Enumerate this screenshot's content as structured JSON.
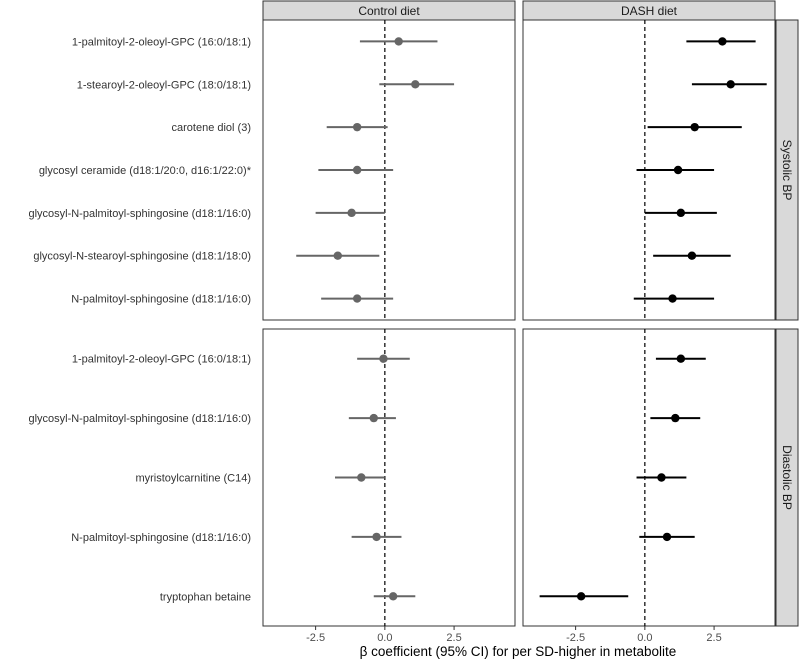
{
  "chart_data": {
    "type": "forest",
    "xlabel": "β coefficient (95% CI) for per SD-higher in metabolite",
    "xlim": [
      -4.4,
      4.7
    ],
    "x_ticks": [
      -2.5,
      0.0,
      2.5
    ],
    "x_tick_labels": [
      "-2.5",
      "0.0",
      "2.5"
    ],
    "reference_line": 0,
    "grid": false,
    "columns": [
      {
        "label": "Control diet",
        "color": "#666666"
      },
      {
        "label": "DASH diet",
        "color": "#000000"
      }
    ],
    "rows": [
      {
        "label": "Systolic BP",
        "metabolites": [
          "1-palmitoyl-2-oleoyl-GPC (16:0/18:1)",
          "1-stearoyl-2-oleoyl-GPC (18:0/18:1)",
          "carotene diol (3)",
          "glycosyl ceramide (d18:1/20:0, d16:1/22:0)*",
          "glycosyl-N-palmitoyl-sphingosine (d18:1/16:0)",
          "glycosyl-N-stearoyl-sphingosine (d18:1/18:0)",
          "N-palmitoyl-sphingosine (d18:1/16:0)"
        ],
        "series": [
          {
            "name": "Control diet",
            "estimate": [
              0.5,
              1.1,
              -1.0,
              -1.0,
              -1.2,
              -1.7,
              -1.0
            ],
            "lower": [
              -0.9,
              -0.2,
              -2.1,
              -2.4,
              -2.5,
              -3.2,
              -2.3
            ],
            "upper": [
              1.9,
              2.5,
              0.1,
              0.3,
              0.0,
              -0.2,
              0.3
            ]
          },
          {
            "name": "DASH diet",
            "estimate": [
              2.8,
              3.1,
              1.8,
              1.2,
              1.3,
              1.7,
              1.0
            ],
            "lower": [
              1.5,
              1.7,
              0.1,
              -0.3,
              0.0,
              0.3,
              -0.4
            ],
            "upper": [
              4.0,
              4.4,
              3.5,
              2.5,
              2.6,
              3.1,
              2.5
            ]
          }
        ]
      },
      {
        "label": "Diastolic BP",
        "metabolites": [
          "1-palmitoyl-2-oleoyl-GPC (16:0/18:1)",
          "glycosyl-N-palmitoyl-sphingosine (d18:1/16:0)",
          "myristoylcarnitine (C14)",
          "N-palmitoyl-sphingosine (d18:1/16:0)",
          "tryptophan betaine"
        ],
        "series": [
          {
            "name": "Control diet",
            "estimate": [
              -0.05,
              -0.4,
              -0.85,
              -0.3,
              0.3
            ],
            "lower": [
              -1.0,
              -1.3,
              -1.8,
              -1.2,
              -0.4
            ],
            "upper": [
              0.9,
              0.4,
              0.0,
              0.6,
              1.1
            ]
          },
          {
            "name": "DASH diet",
            "estimate": [
              1.3,
              1.1,
              0.6,
              0.8,
              -2.3
            ],
            "lower": [
              0.4,
              0.2,
              -0.3,
              -0.2,
              -3.8
            ],
            "upper": [
              2.2,
              2.0,
              1.5,
              1.8,
              -0.6
            ]
          }
        ]
      }
    ]
  }
}
